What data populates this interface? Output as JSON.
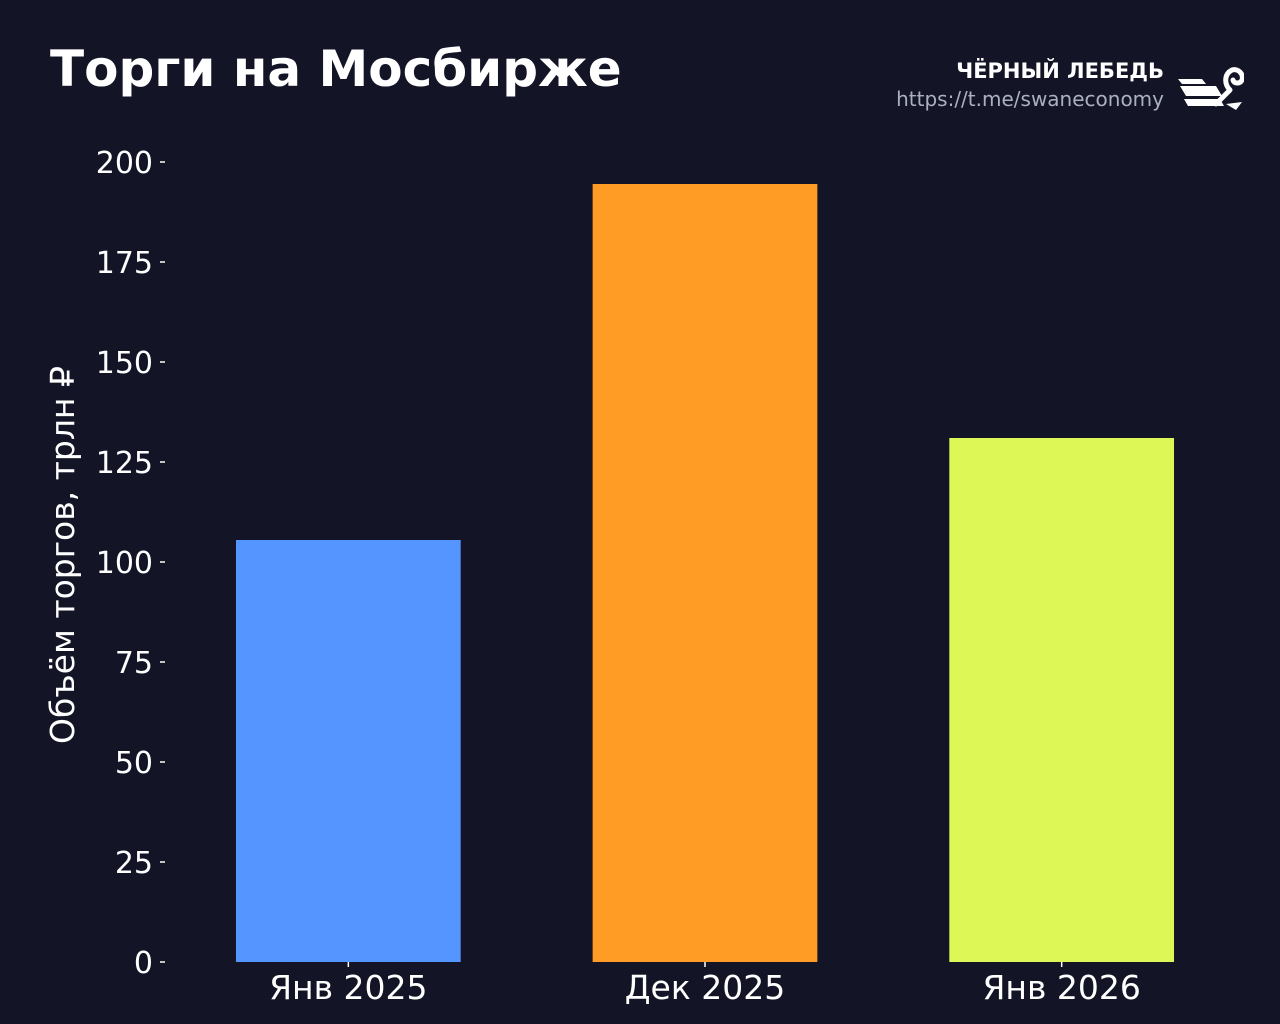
{
  "header": {
    "title": "Торги на Мосбирже",
    "brand_name": "ЧЁРНЫЙ ЛЕБЕДЬ",
    "brand_url": "https://t.me/swaneconomy",
    "logo_icon": "black-swan-logo-icon"
  },
  "chart_data": {
    "type": "bar",
    "title": "Торги на Мосбирже",
    "xlabel": "",
    "ylabel": "Объём торгов, трлн ₽",
    "categories": [
      "Янв 2025",
      "Дек 2025",
      "Янв 2026"
    ],
    "values": [
      105.5,
      194.5,
      131
    ],
    "colors": [
      "#5595ff",
      "#ff9c25",
      "#ddf757"
    ],
    "ylim": [
      0,
      200
    ],
    "yticks": [
      "0",
      "25",
      "50",
      "75",
      "100",
      "125",
      "150",
      "175",
      "200"
    ],
    "grid": false,
    "legend": "none"
  },
  "theme": {
    "background": "#131526",
    "text": "#ffffff",
    "muted_text": "#aab0c2"
  }
}
